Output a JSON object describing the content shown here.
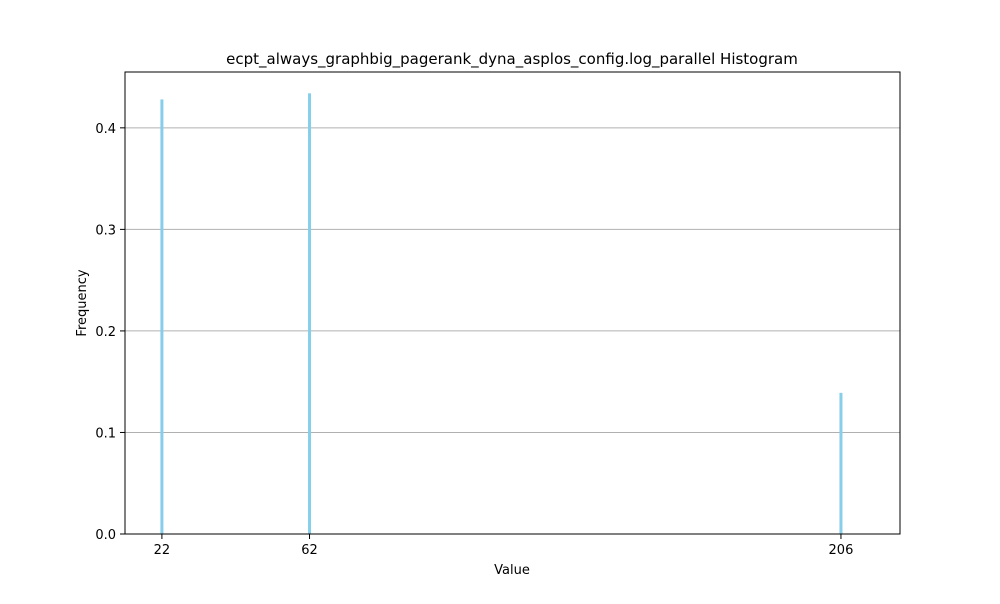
{
  "chart_data": {
    "type": "bar",
    "title": "ecpt_always_graphbig_pagerank_dyna_asplos_config.log_parallel Histogram",
    "xlabel": "Value",
    "ylabel": "Frequency",
    "xlim": [
      12,
      222
    ],
    "ylim": [
      0,
      0.455
    ],
    "x_ticks": [
      22,
      62,
      206
    ],
    "y_ticks": [
      0.0,
      0.1,
      0.2,
      0.3,
      0.4
    ],
    "y_tick_labels": [
      "0.0",
      "0.1",
      "0.2",
      "0.3",
      "0.4"
    ],
    "grid": "y",
    "bar_color": "#87CEEB",
    "bars": [
      {
        "x": 22,
        "value": 0.428
      },
      {
        "x": 62,
        "value": 0.434
      },
      {
        "x": 206,
        "value": 0.139
      }
    ]
  }
}
